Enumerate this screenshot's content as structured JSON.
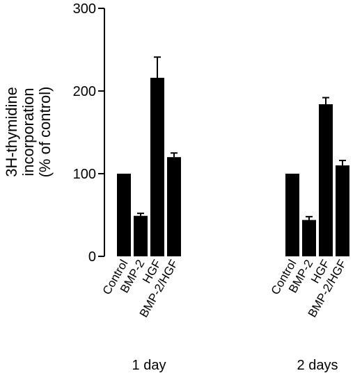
{
  "chart_data": {
    "type": "bar",
    "title": "",
    "ylabel_lines": [
      "3H-thymidine",
      "incorporation",
      "(% of control)"
    ],
    "ylim": [
      0,
      300
    ],
    "yticks": [
      0,
      100,
      200,
      300
    ],
    "grid": false,
    "legend": "none",
    "bar_color": "#000000",
    "groups": [
      {
        "label": "1 day",
        "categories": [
          "Control",
          "BMP-2",
          "HGF",
          "BMP-2/HGF"
        ],
        "values": [
          100,
          49,
          216,
          120
        ],
        "errors": [
          0,
          3,
          25,
          5
        ]
      },
      {
        "label": "2 days",
        "categories": [
          "Control",
          "BMP-2",
          "HGF",
          "BMP-2/HGF"
        ],
        "values": [
          100,
          44,
          184,
          110
        ],
        "errors": [
          0,
          4,
          8,
          6
        ]
      }
    ]
  }
}
